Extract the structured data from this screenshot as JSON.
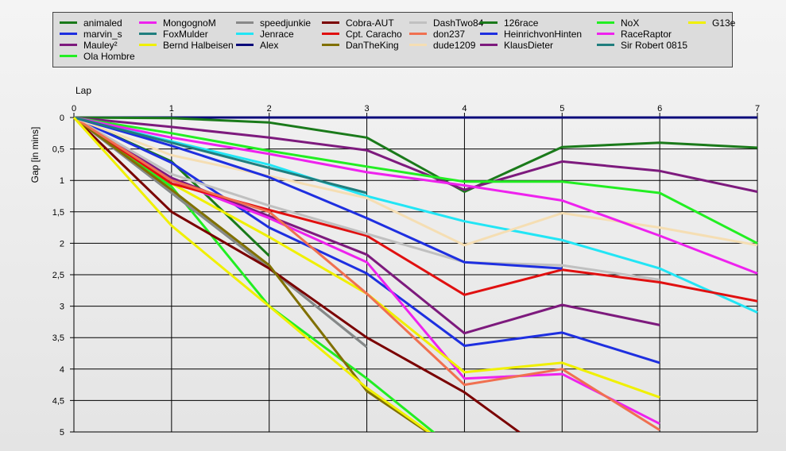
{
  "chart_data": {
    "type": "line",
    "xlabel": "Lap",
    "ylabel": "Gap [in mins]",
    "xlim": [
      0,
      7
    ],
    "ylim": [
      0,
      5
    ],
    "y_inverted": true,
    "grid": true,
    "legend_position": "top",
    "x_ticks": [
      "0",
      "1",
      "2",
      "3",
      "4",
      "5",
      "6",
      "7"
    ],
    "y_ticks": [
      "0",
      "0,5",
      "1",
      "1,5",
      "2",
      "2,5",
      "3",
      "3,5",
      "4",
      "4,5",
      "5"
    ],
    "series": [
      {
        "name": "animaled",
        "color": "#1a7a1a",
        "values": [
          0,
          0.7,
          2.2
        ]
      },
      {
        "name": "marvin_s",
        "color": "#1e2fe0",
        "values": [
          0,
          0.72,
          1.75,
          2.48,
          3.63,
          3.42,
          3.9
        ]
      },
      {
        "name": "Mauley²",
        "color": "#7d1a7d",
        "values": [
          0,
          0.96,
          1.57,
          2.18,
          3.43,
          2.98,
          3.3
        ]
      },
      {
        "name": "Ola Hombre",
        "color": "#22ee22",
        "values": [
          0,
          1.1,
          3.0,
          4.15,
          5.4
        ]
      },
      {
        "name": "MongognoM",
        "color": "#ee22ee",
        "values": [
          0,
          1.0,
          1.6,
          2.3,
          4.15,
          4.08,
          4.87
        ]
      },
      {
        "name": "FoxMulder",
        "color": "#207e7e",
        "values": [
          0,
          1.2,
          2.4,
          3.65
        ]
      },
      {
        "name": "Bernd Halbeisen",
        "color": "#f0f000",
        "values": [
          0,
          1.05,
          1.9,
          2.8,
          4.05,
          3.9,
          4.45
        ]
      },
      {
        "name": "speedjunkie",
        "color": "#888888",
        "values": [
          0,
          1.2,
          2.4,
          3.65
        ]
      },
      {
        "name": "Jenrace",
        "color": "#22e5f5",
        "values": [
          0,
          0.38,
          0.75,
          1.25,
          1.65,
          1.95,
          2.4,
          3.1
        ]
      },
      {
        "name": "Alex",
        "color": "#0a0a7a",
        "values": [
          0,
          0,
          0,
          0,
          0,
          0,
          0,
          0
        ]
      },
      {
        "name": "Cobra-AUT",
        "color": "#7a0000",
        "values": [
          0,
          1.5,
          2.4,
          3.5,
          4.37,
          5.5
        ]
      },
      {
        "name": "Cpt. Caracho",
        "color": "#e01010",
        "values": [
          0,
          1.05,
          1.47,
          1.88,
          2.82,
          2.42,
          2.62,
          2.92
        ]
      },
      {
        "name": "DanTheKing",
        "color": "#807000",
        "values": [
          0,
          1.15,
          2.35,
          4.35,
          5.4
        ]
      },
      {
        "name": "DashTwo84",
        "color": "#c0c0c0",
        "values": [
          0,
          0.9,
          1.4,
          1.85,
          2.3,
          2.35,
          2.58
        ]
      },
      {
        "name": "don237",
        "color": "#f07050",
        "values": [
          0,
          1.0,
          1.5,
          2.8,
          4.25,
          4.0,
          4.97
        ]
      },
      {
        "name": "dude1209",
        "color": "#f5deb3",
        "values": [
          0,
          0.6,
          0.93,
          1.28,
          2.03,
          1.52,
          1.75,
          2.03
        ]
      },
      {
        "name": "126race",
        "color": "#1a7a1a",
        "values": [
          0,
          0.01,
          0.08,
          0.32,
          1.18,
          0.47,
          0.4,
          0.48
        ]
      },
      {
        "name": "HeinrichvonHinten",
        "color": "#1e2fe0",
        "values": [
          0,
          0.45,
          0.95,
          1.6,
          2.3,
          2.4
        ]
      },
      {
        "name": "KlausDieter",
        "color": "#7d1a7d",
        "values": [
          0,
          0.15,
          0.32,
          0.52,
          1.15,
          0.7,
          0.85,
          1.18
        ]
      },
      {
        "name": "NoX",
        "color": "#22ee22",
        "values": [
          0,
          0.25,
          0.53,
          0.78,
          1.02,
          1.02,
          1.2,
          2.0
        ]
      },
      {
        "name": "RaceRaptor",
        "color": "#ee22ee",
        "values": [
          0,
          0.32,
          0.58,
          0.87,
          1.08,
          1.32,
          1.88,
          2.48
        ]
      },
      {
        "name": "Sir Robert 0815",
        "color": "#207e7e",
        "values": [
          0,
          0.4,
          0.8,
          1.2
        ]
      },
      {
        "name": "G13e",
        "color": "#f0f000",
        "values": [
          0,
          1.72,
          3.0,
          4.3,
          5.4
        ]
      }
    ]
  }
}
